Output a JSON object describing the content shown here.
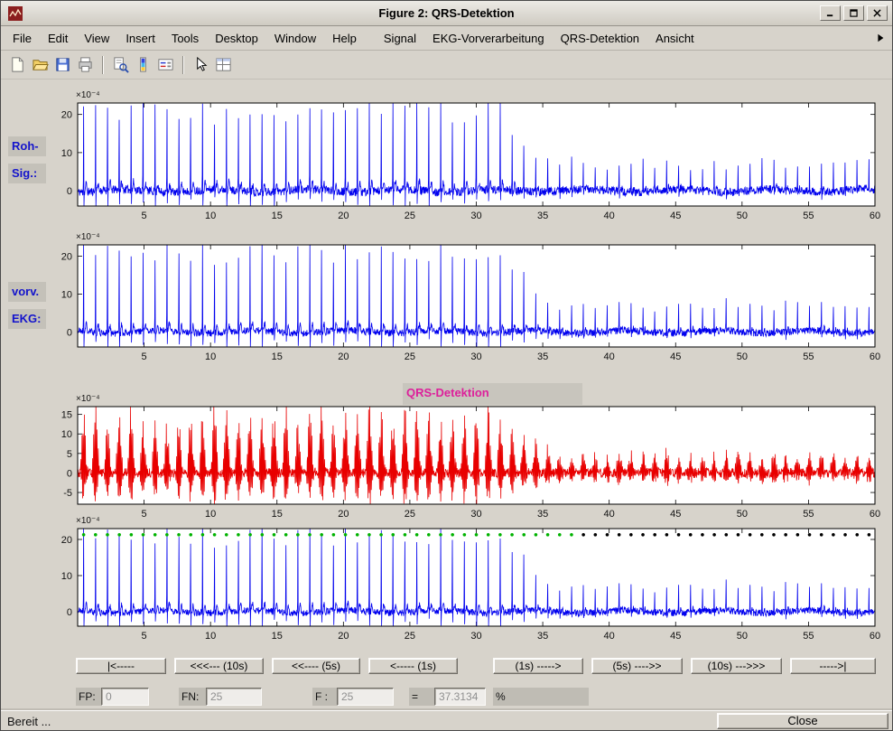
{
  "window": {
    "title": "Figure 2: QRS-Detektion",
    "icon": "window-icon",
    "controls": [
      "minimize-icon",
      "maximize-icon",
      "close-icon"
    ]
  },
  "menubar": {
    "items": [
      "File",
      "Edit",
      "View",
      "Insert",
      "Tools",
      "Desktop",
      "Window",
      "Help",
      "Signal",
      "EKG-Vorverarbeitung",
      "QRS-Detektion",
      "Ansicht"
    ],
    "overflow_icon": "menu-overflow-icon"
  },
  "toolbar": {
    "icons": [
      "new-file-icon",
      "open-file-icon",
      "save-icon",
      "print-icon",
      "separator",
      "print-preview-icon",
      "colorbar-icon",
      "legend-icon",
      "separator",
      "edit-plot-icon",
      "property-editor-icon"
    ]
  },
  "nav": {
    "buttons": [
      "|<-----",
      "<<<--- (10s)",
      "<<---- (5s)",
      "<----- (1s)",
      "(1s) ----->",
      "(5s) ---->>",
      "(10s) --->>>",
      "----->|"
    ]
  },
  "fields": {
    "fp_label": "FP:",
    "fp_value": "0",
    "fn_label": "FN:",
    "fn_value": "25",
    "f_label": "F :",
    "f_value": "25",
    "equals_label": "=",
    "ratio_value": "37.3134",
    "percent_label": "%"
  },
  "statusbar": {
    "text": "Bereit ...",
    "close_label": "Close"
  },
  "chart_data": {
    "type": "line",
    "x_unit": "s",
    "beats": {
      "count": 67,
      "first_s": 0.45,
      "rr_s": 0.8955,
      "amp_drop": {
        "start_s": 31.5,
        "end_s": 35.5,
        "low_factor": 0.33
      },
      "detected_count": 42,
      "missed_count": 25
    },
    "detection_stats": {
      "FP": 0,
      "FN": 25,
      "F": 25,
      "ratio_percent": 37.3134
    },
    "subplots": [
      {
        "name": "raw-signal",
        "side_label": [
          "Roh-",
          "Sig.:"
        ],
        "color": "#0000ee",
        "signal": "ecg",
        "seed": 11,
        "peak": 21,
        "noise": 2.2,
        "xlim": [
          0,
          60
        ],
        "ylim": [
          -4,
          23
        ],
        "yticks": [
          0,
          10,
          20
        ],
        "xticks": [
          5,
          10,
          15,
          20,
          25,
          30,
          35,
          40,
          45,
          50,
          55,
          60
        ],
        "y_scale_label": "×10⁻⁴"
      },
      {
        "name": "preprocessed-ecg",
        "side_label": [
          "vorv.",
          "EKG:"
        ],
        "color": "#0000ee",
        "signal": "ecg",
        "seed": 21,
        "peak": 21,
        "noise": 1.9,
        "xlim": [
          0,
          60
        ],
        "ylim": [
          -4,
          23
        ],
        "yticks": [
          0,
          10,
          20
        ],
        "xticks": [
          5,
          10,
          15,
          20,
          25,
          30,
          35,
          40,
          45,
          50,
          55,
          60
        ],
        "y_scale_label": "×10⁻⁴"
      },
      {
        "name": "qrs-detection-filtered",
        "title": "QRS-Detektion",
        "color": "#e80000",
        "signal": "filtered",
        "seed": 31,
        "peak": 15.5,
        "noise": 2.4,
        "xlim": [
          0,
          60
        ],
        "ylim": [
          -8,
          17
        ],
        "yticks": [
          -5,
          0,
          5,
          10,
          15
        ],
        "xticks": [
          5,
          10,
          15,
          20,
          25,
          30,
          35,
          40,
          45,
          50,
          55,
          60
        ],
        "y_scale_label": "×10⁻⁴"
      },
      {
        "name": "detection-markers",
        "color": "#0000ee",
        "signal": "ecg",
        "seed": 21,
        "peak": 21,
        "noise": 1.9,
        "xlim": [
          0,
          60
        ],
        "ylim": [
          -4,
          23
        ],
        "yticks": [
          0,
          10,
          20
        ],
        "xticks": [
          5,
          10,
          15,
          20,
          25,
          30,
          35,
          40,
          45,
          50,
          55,
          60
        ],
        "y_scale_label": "×10⁻⁴",
        "markers": {
          "y_value": 21.3,
          "detected_color": "#00b300",
          "missed_color": "#000000"
        }
      }
    ]
  }
}
